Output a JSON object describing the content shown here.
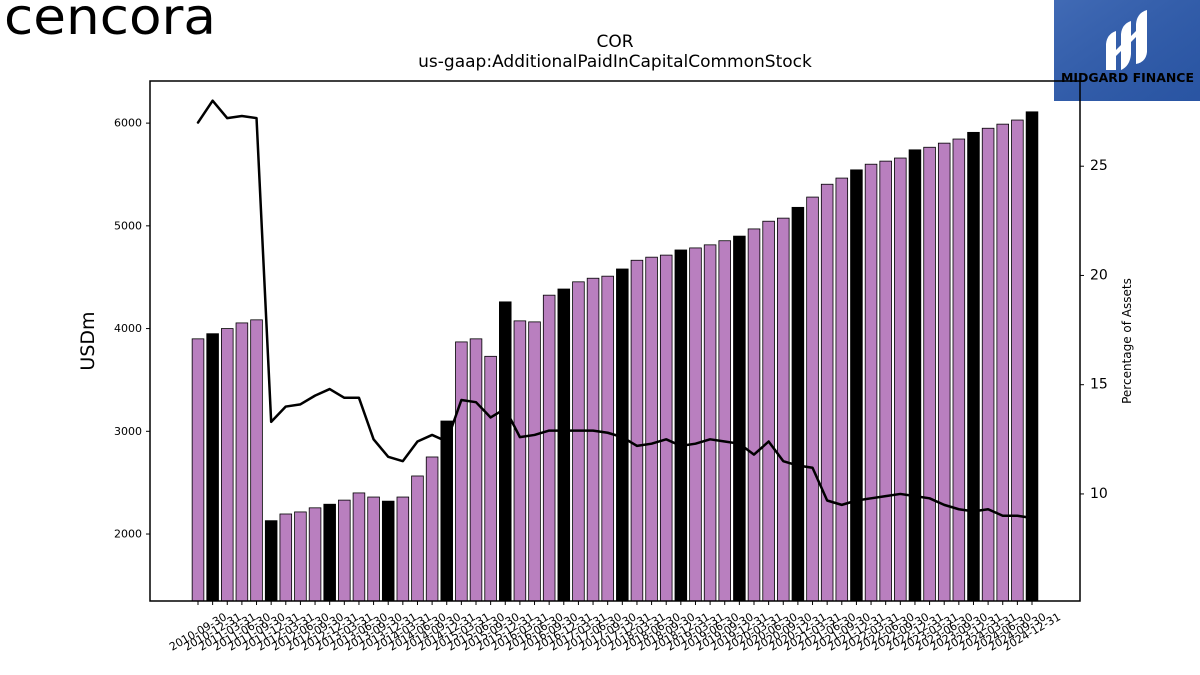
{
  "logos": {
    "left": {
      "text": "cencora",
      "color": "#4a2290"
    },
    "right": {
      "text": "MIDGARD FINANCE",
      "background": "#2c5aad",
      "color": "#ffffff"
    }
  },
  "chart_data": {
    "type": "bar",
    "title": "COR",
    "subtitle": "us-gaap:AdditionalPaidInCapitalCommonStock",
    "ylabel": "USDm",
    "y2label": "Percentage of Assets",
    "ylim": [
      1348,
      6410
    ],
    "y2lim": [
      5.1,
      28.9
    ],
    "yticks": [
      2000,
      3000,
      4000,
      5000,
      6000
    ],
    "y2ticks": [
      10,
      15,
      20,
      25
    ],
    "grid": false,
    "colors": {
      "bar": "#b97fbf",
      "bar_highlight": "#000000",
      "line": "#000000"
    },
    "x": [
      "2010-09-30",
      "2010-12-31",
      "2011-03-31",
      "2011-06-30",
      "2011-09-30",
      "2011-12-31",
      "2012-03-31",
      "2012-06-30",
      "2012-09-30",
      "2012-12-31",
      "2013-03-31",
      "2013-06-30",
      "2013-09-30",
      "2013-12-31",
      "2014-03-31",
      "2014-06-30",
      "2014-09-30",
      "2014-12-31",
      "2015-03-31",
      "2015-06-30",
      "2015-09-30",
      "2015-12-31",
      "2016-03-31",
      "2016-06-30",
      "2016-09-30",
      "2016-12-31",
      "2017-03-31",
      "2017-06-30",
      "2017-09-30",
      "2017-12-31",
      "2018-03-31",
      "2018-06-30",
      "2018-09-30",
      "2018-12-31",
      "2019-03-31",
      "2019-06-30",
      "2019-09-30",
      "2019-12-31",
      "2020-03-31",
      "2020-06-30",
      "2020-09-30",
      "2020-12-31",
      "2021-03-31",
      "2021-06-30",
      "2021-09-30",
      "2021-12-31",
      "2022-03-31",
      "2022-06-30",
      "2022-09-30",
      "2022-12-31",
      "2023-03-31",
      "2023-06-30",
      "2023-09-30",
      "2023-12-31",
      "2024-03-31",
      "2024-06-30",
      "2024-09-30",
      "2024-12-31"
    ],
    "series": [
      {
        "type": "bar",
        "axis": "left",
        "values": [
          3900,
          3950,
          4000,
          4055,
          4085,
          2130,
          2195,
          2215,
          2255,
          2290,
          2330,
          2400,
          2360,
          2320,
          2360,
          2565,
          2750,
          3100,
          3870,
          3900,
          3730,
          4260,
          4075,
          4065,
          4325,
          4385,
          4455,
          4490,
          4510,
          4580,
          4665,
          4695,
          4715,
          4765,
          4785,
          4815,
          4855,
          4900,
          4970,
          5045,
          5075,
          5180,
          5280,
          5405,
          5465,
          5545,
          5600,
          5630,
          5660,
          5740,
          5765,
          5805,
          5845,
          5910,
          5950,
          5990,
          6030,
          6110
        ],
        "highlight": [
          false,
          true,
          false,
          false,
          false,
          true,
          false,
          false,
          false,
          true,
          false,
          false,
          false,
          true,
          false,
          false,
          false,
          true,
          false,
          false,
          false,
          true,
          false,
          false,
          false,
          true,
          false,
          false,
          false,
          true,
          false,
          false,
          false,
          true,
          false,
          false,
          false,
          true,
          false,
          false,
          false,
          true,
          false,
          false,
          false,
          true,
          false,
          false,
          false,
          true,
          false,
          false,
          false,
          true,
          false,
          false,
          false,
          true
        ]
      },
      {
        "type": "line",
        "axis": "right",
        "values": [
          27.0,
          28.0,
          27.2,
          27.3,
          27.2,
          13.3,
          14.0,
          14.1,
          14.5,
          14.8,
          14.4,
          14.4,
          12.5,
          11.7,
          11.5,
          12.4,
          12.7,
          12.4,
          14.3,
          14.2,
          13.5,
          13.9,
          12.6,
          12.7,
          12.9,
          12.9,
          12.9,
          12.9,
          12.8,
          12.6,
          12.2,
          12.3,
          12.5,
          12.2,
          12.3,
          12.5,
          12.4,
          12.3,
          11.8,
          12.4,
          11.5,
          11.3,
          11.2,
          9.7,
          9.5,
          9.7,
          9.8,
          9.9,
          10.0,
          9.9,
          9.8,
          9.5,
          9.3,
          9.2,
          9.3,
          9.0,
          9.0,
          8.9
        ]
      }
    ]
  }
}
